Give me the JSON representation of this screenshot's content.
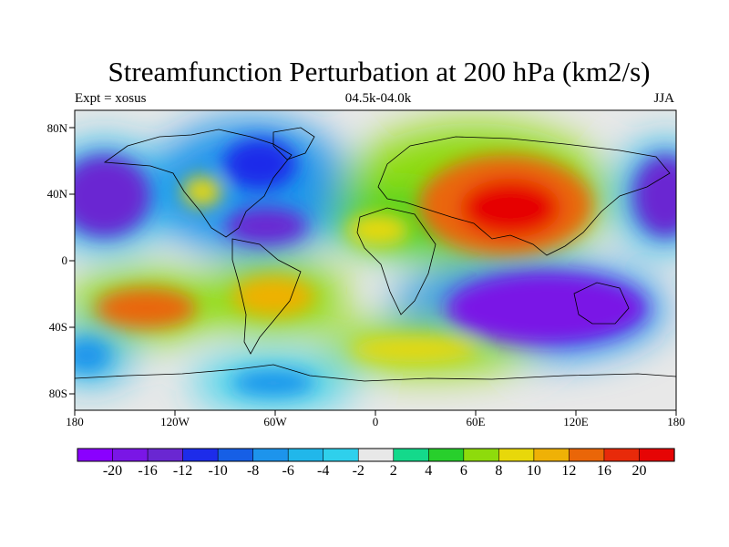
{
  "title": "Streamfunction Perturbation at 200 hPa (km2/s)",
  "subtitle_left": "Expt = xosus",
  "subtitle_center": "04.5k-04.0k",
  "subtitle_right": "JJA",
  "lat_labels": [
    "80N",
    "40N",
    "0",
    "40S",
    "80S"
  ],
  "lon_labels": [
    "180",
    "120W",
    "60W",
    "0",
    "60E",
    "120E",
    "180"
  ],
  "colorbar": {
    "labels": [
      "-20",
      "-16",
      "-12",
      "-10",
      "-8",
      "-6",
      "-4",
      "-2",
      "2",
      "4",
      "6",
      "8",
      "10",
      "12",
      "16",
      "20"
    ],
    "colors": [
      "#8a00ff",
      "#7a16e6",
      "#6a27d2",
      "#1d2cea",
      "#165fe6",
      "#1d94ec",
      "#21b7ea",
      "#2fd0ec",
      "#e8e8e8",
      "#14d98b",
      "#28cf2c",
      "#8edb0c",
      "#e8d80a",
      "#efb106",
      "#ea6608",
      "#e82a0a",
      "#e60505"
    ]
  },
  "features": [
    {
      "name": "north-pacific-low",
      "lon": -160,
      "lat": 42,
      "value": -17
    },
    {
      "name": "south-pacific-high",
      "lon": -135,
      "lat": -32,
      "value": 12
    },
    {
      "name": "east-pacific-high",
      "lon": -113,
      "lat": 40,
      "value": 11
    },
    {
      "name": "north-america-low",
      "lon": -88,
      "lat": 52,
      "value": -15
    },
    {
      "name": "gulf-low",
      "lon": -82,
      "lat": 28,
      "value": -15
    },
    {
      "name": "south-america-high",
      "lon": -60,
      "lat": -22,
      "value": 9
    },
    {
      "name": "antarctic-low",
      "lon": -68,
      "lat": -65,
      "value": -6
    },
    {
      "name": "asian-high",
      "lon": 85,
      "lat": 35,
      "value": 20
    },
    {
      "name": "south-indian-low",
      "lon": 100,
      "lat": -30,
      "value": -16
    },
    {
      "name": "southern-ocean-high",
      "lon": 50,
      "lat": -55,
      "value": 7
    },
    {
      "name": "africa-high",
      "lon": 20,
      "lat": 15,
      "value": 6
    },
    {
      "name": "west-pacific-low",
      "lon": 175,
      "lat": 35,
      "value": -15
    }
  ]
}
